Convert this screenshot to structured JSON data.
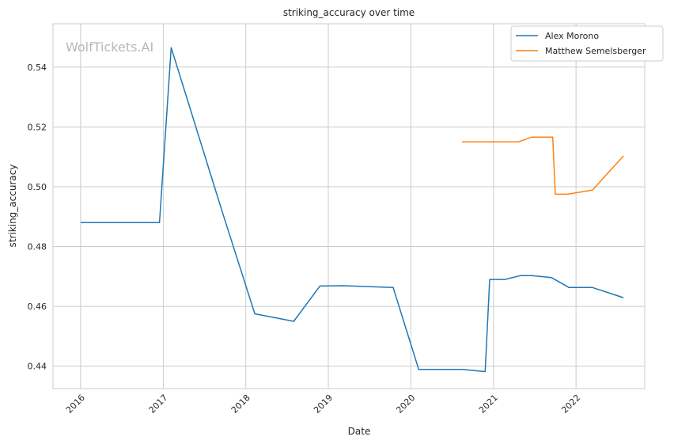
{
  "chart_data": {
    "type": "line",
    "title": "striking_accuracy over time",
    "xlabel": "Date",
    "ylabel": "striking_accuracy",
    "watermark": "WolfTickets.AI",
    "x_ticks": [
      "2016",
      "2017",
      "2018",
      "2019",
      "2020",
      "2021",
      "2022"
    ],
    "y_ticks": [
      "0.44",
      "0.46",
      "0.48",
      "0.50",
      "0.52",
      "0.54"
    ],
    "xlim": [
      "2015-09-01",
      "2022-11-01"
    ],
    "ylim": [
      0.4325,
      0.5545
    ],
    "grid": true,
    "legend": "top-right",
    "series": [
      {
        "name": "Alex Morono",
        "color": "#1f77b4",
        "points": [
          {
            "x": "2016-01-01",
            "y": 0.488
          },
          {
            "x": "2016-12-15",
            "y": 0.488
          },
          {
            "x": "2017-02-05",
            "y": 0.5465
          },
          {
            "x": "2017-09-15",
            "y": 0.4925
          },
          {
            "x": "2018-02-10",
            "y": 0.4575
          },
          {
            "x": "2018-08-01",
            "y": 0.455
          },
          {
            "x": "2018-11-25",
            "y": 0.4668
          },
          {
            "x": "2019-03-10",
            "y": 0.4669
          },
          {
            "x": "2019-10-15",
            "y": 0.4663
          },
          {
            "x": "2020-02-05",
            "y": 0.4389
          },
          {
            "x": "2020-08-15",
            "y": 0.4389
          },
          {
            "x": "2020-11-25",
            "y": 0.4382
          },
          {
            "x": "2020-12-15",
            "y": 0.469
          },
          {
            "x": "2021-02-20",
            "y": 0.469
          },
          {
            "x": "2021-05-01",
            "y": 0.4703
          },
          {
            "x": "2021-06-20",
            "y": 0.4703
          },
          {
            "x": "2021-09-15",
            "y": 0.4696
          },
          {
            "x": "2021-12-01",
            "y": 0.4663
          },
          {
            "x": "2022-03-15",
            "y": 0.4663
          },
          {
            "x": "2022-07-30",
            "y": 0.4629
          }
        ]
      },
      {
        "name": "Matthew Semelsberger",
        "color": "#ff7f0e",
        "points": [
          {
            "x": "2020-08-15",
            "y": 0.515
          },
          {
            "x": "2021-04-20",
            "y": 0.515
          },
          {
            "x": "2021-06-20",
            "y": 0.5166
          },
          {
            "x": "2021-09-20",
            "y": 0.5166
          },
          {
            "x": "2021-10-01",
            "y": 0.4975
          },
          {
            "x": "2021-11-25",
            "y": 0.4975
          },
          {
            "x": "2022-03-15",
            "y": 0.4989
          },
          {
            "x": "2022-07-30",
            "y": 0.5103
          }
        ]
      }
    ]
  }
}
